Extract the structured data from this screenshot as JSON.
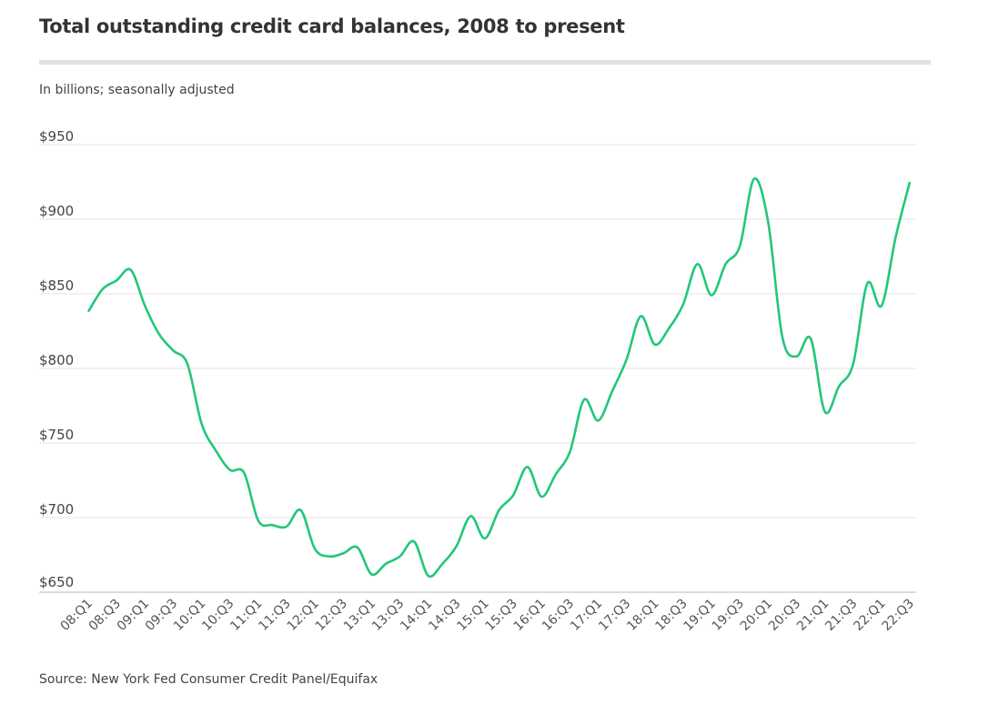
{
  "chart_data": {
    "type": "line",
    "title": "Total outstanding credit card balances, 2008 to present",
    "subtitle": "In billions; seasonally adjusted",
    "source": "Source: New York Fed Consumer Credit Panel/Equifax",
    "xlabel": "",
    "ylabel": "",
    "ylim": [
      650,
      950
    ],
    "yticks": [
      650,
      700,
      750,
      800,
      850,
      900,
      950
    ],
    "ytick_labels": [
      "$650",
      "$700",
      "$750",
      "$800",
      "$850",
      "$900",
      "$950"
    ],
    "grid": true,
    "line_color": "#22c77a",
    "xtick_labels": [
      "08:Q1",
      "08:Q3",
      "09:Q1",
      "09:Q3",
      "10:Q1",
      "10:Q3",
      "11:Q1",
      "11:Q3",
      "12:Q1",
      "12:Q3",
      "13:Q1",
      "13:Q3",
      "14:Q1",
      "14:Q3",
      "15:Q1",
      "15:Q3",
      "16:Q1",
      "16:Q3",
      "17:Q1",
      "17:Q3",
      "18:Q1",
      "18:Q3",
      "19:Q1",
      "19:Q3",
      "20:Q1",
      "20:Q3",
      "21:Q1",
      "21:Q3",
      "22:Q1",
      "22:Q3"
    ],
    "series": [
      {
        "name": "Credit card balances",
        "values": [
          838,
          853,
          859,
          866,
          842,
          823,
          812,
          803,
          763,
          745,
          732,
          730,
          698,
          695,
          694,
          705,
          679,
          674,
          676,
          680,
          662,
          669,
          674,
          684,
          661,
          669,
          681,
          701,
          686,
          705,
          715,
          734,
          714,
          729,
          744,
          779,
          765,
          785,
          806,
          835,
          816,
          827,
          843,
          870,
          849,
          870,
          882,
          927,
          898,
          821,
          808,
          820,
          771,
          788,
          803,
          857,
          842,
          888,
          925
        ]
      }
    ]
  }
}
